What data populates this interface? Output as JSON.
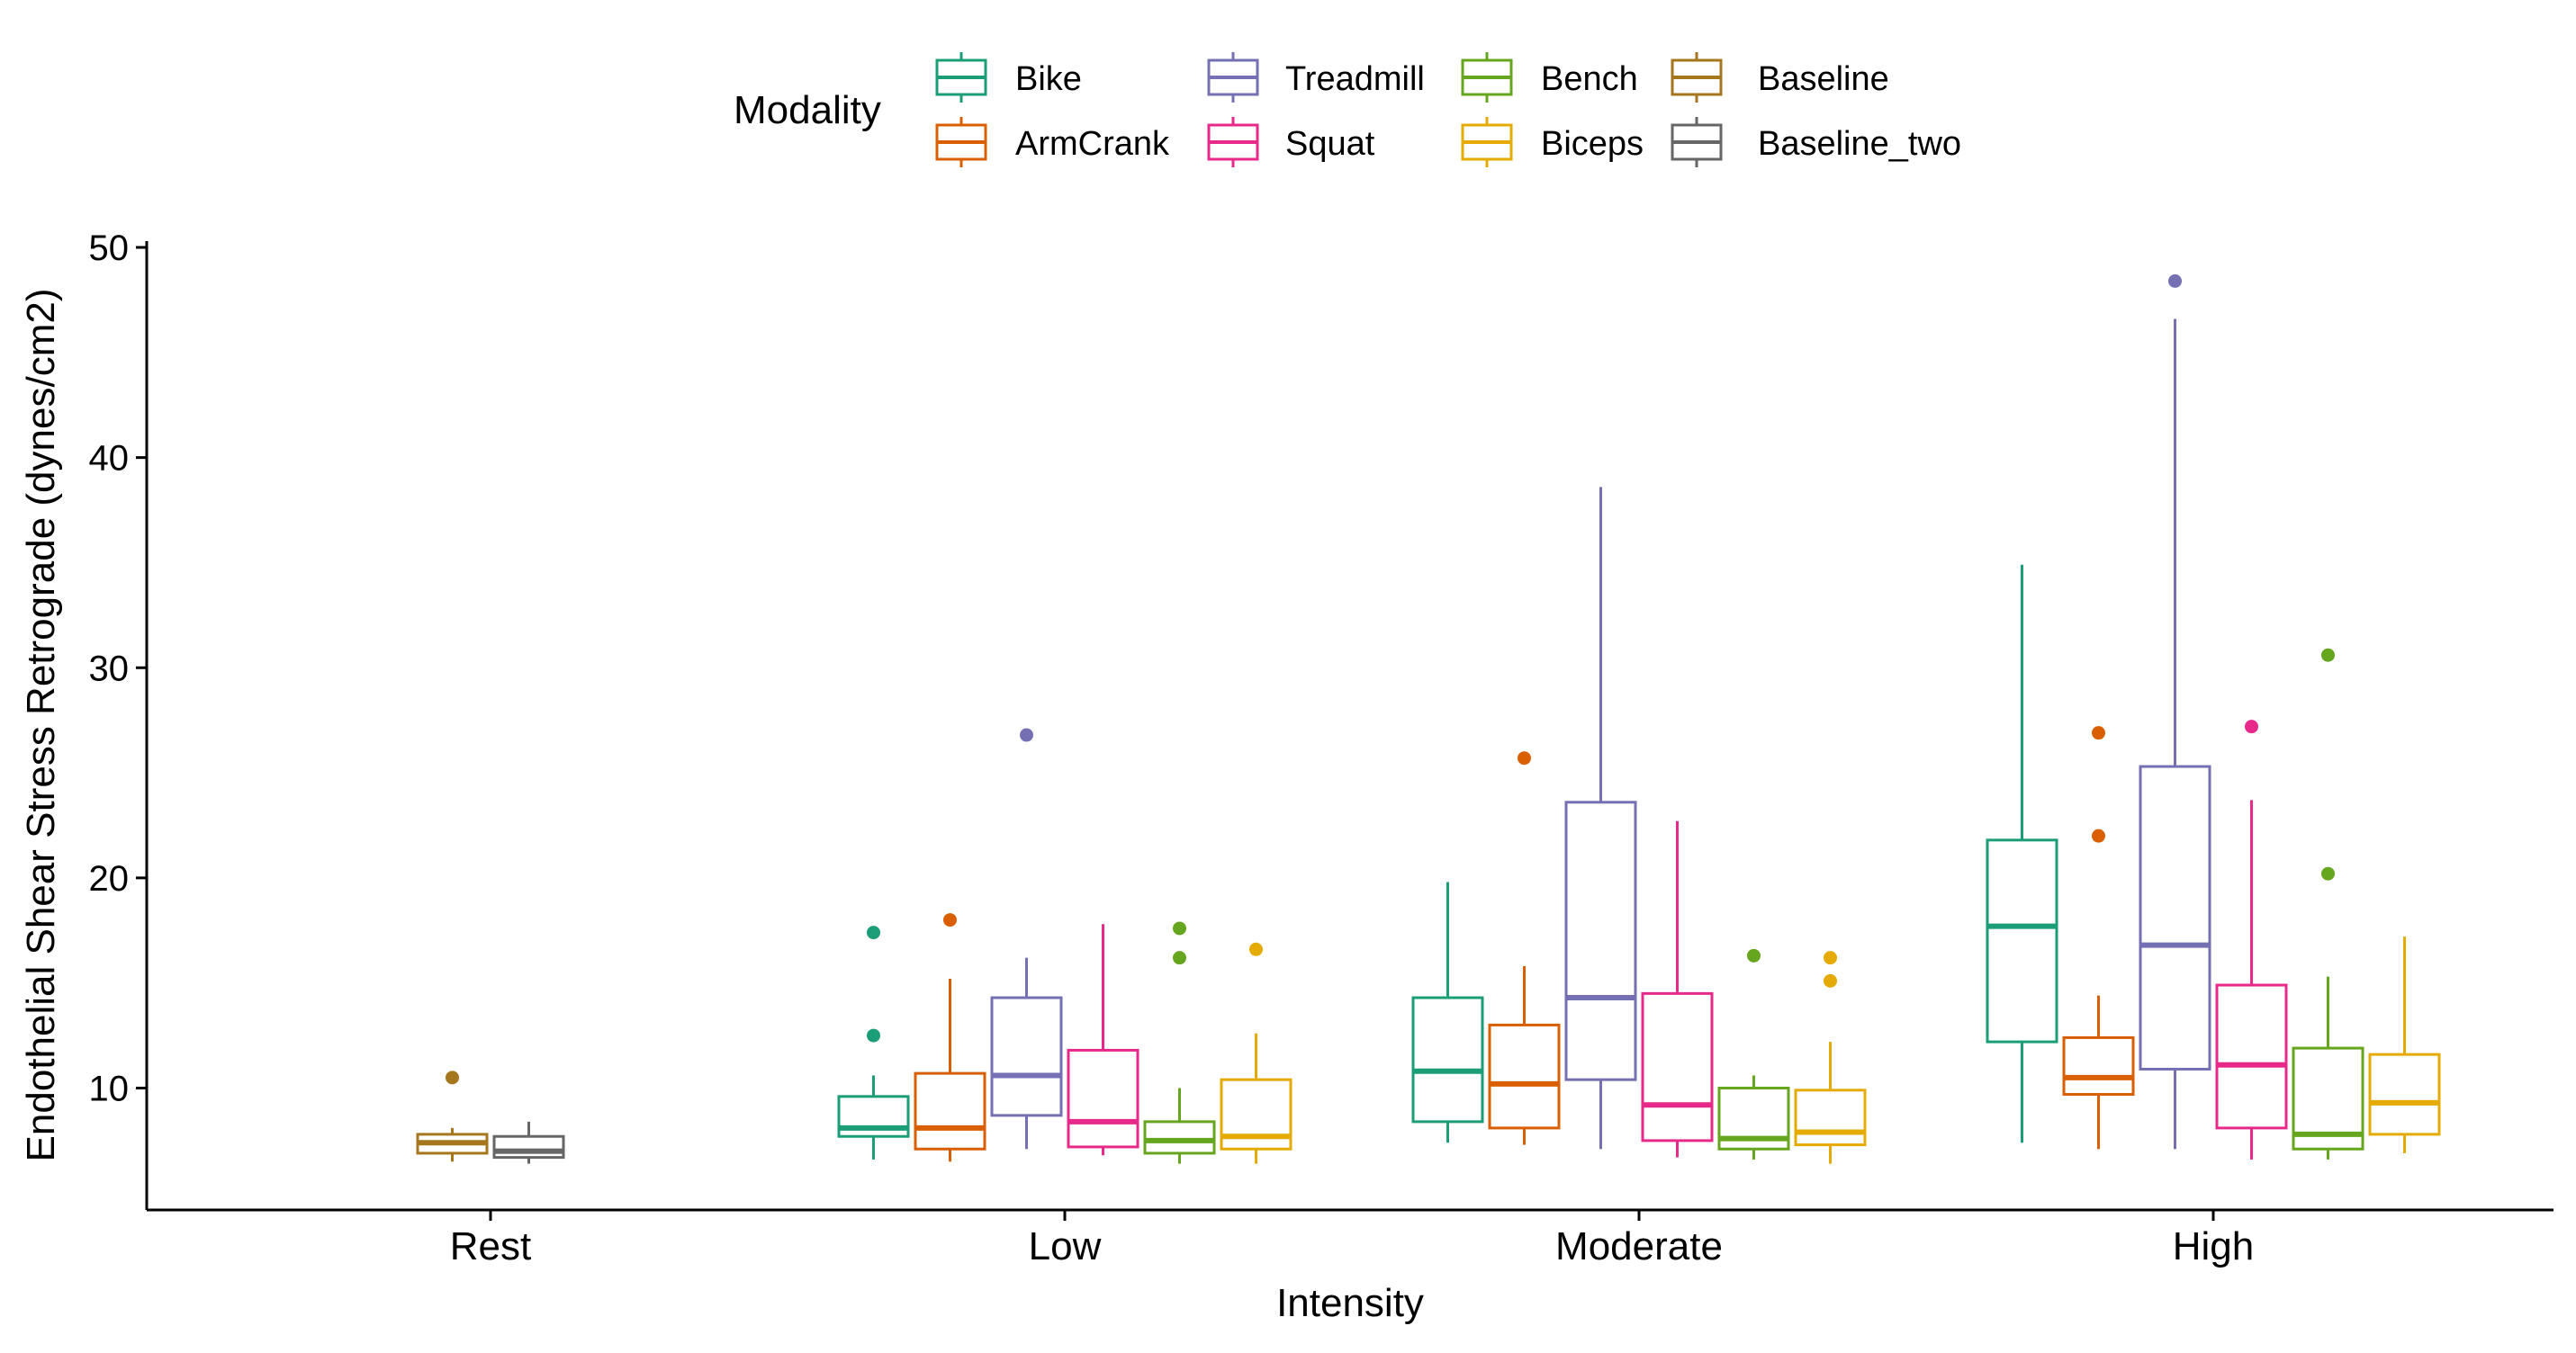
{
  "chart_data": {
    "type": "boxplot",
    "legend": {
      "title": "Modality",
      "position": "top",
      "items": [
        {
          "name": "Bike",
          "color": "#1b9e77"
        },
        {
          "name": "ArmCrank",
          "color": "#d95f02"
        },
        {
          "name": "Treadmill",
          "color": "#7570b3"
        },
        {
          "name": "Squat",
          "color": "#e7298a"
        },
        {
          "name": "Bench",
          "color": "#66a61e"
        },
        {
          "name": "Biceps",
          "color": "#e6ab02"
        },
        {
          "name": "Baseline",
          "color": "#a6761d"
        },
        {
          "name": "Baseline_two",
          "color": "#666666"
        }
      ]
    },
    "xlabel": "Intensity",
    "ylabel": "Endothelial Shear Stress Retrograde (dynes/cm2)",
    "categories": [
      "Rest",
      "Low",
      "Moderate",
      "High"
    ],
    "ylim": [
      4.2,
      50.3
    ],
    "yticks": [
      10,
      20,
      30,
      40,
      50
    ],
    "grid": false,
    "groups": [
      {
        "category": "Rest",
        "boxes": [
          {
            "series": "Baseline",
            "whisker_low": 6.5,
            "q1": 6.9,
            "median": 7.4,
            "q3": 7.8,
            "whisker_high": 8.1,
            "outliers": [
              10.5
            ]
          },
          {
            "series": "Baseline_two",
            "whisker_low": 6.4,
            "q1": 6.7,
            "median": 7.0,
            "q3": 7.7,
            "whisker_high": 8.4,
            "outliers": []
          }
        ]
      },
      {
        "category": "Low",
        "boxes": [
          {
            "series": "Bike",
            "whisker_low": 6.6,
            "q1": 7.7,
            "median": 8.1,
            "q3": 9.6,
            "whisker_high": 10.6,
            "outliers": [
              12.5,
              17.4
            ]
          },
          {
            "series": "ArmCrank",
            "whisker_low": 6.5,
            "q1": 7.1,
            "median": 8.1,
            "q3": 10.7,
            "whisker_high": 15.2,
            "outliers": [
              18.0
            ]
          },
          {
            "series": "Treadmill",
            "whisker_low": 7.1,
            "q1": 8.7,
            "median": 10.6,
            "q3": 14.3,
            "whisker_high": 16.2,
            "outliers": [
              26.8
            ]
          },
          {
            "series": "Squat",
            "whisker_low": 6.8,
            "q1": 7.2,
            "median": 8.4,
            "q3": 11.8,
            "whisker_high": 17.8,
            "outliers": []
          },
          {
            "series": "Bench",
            "whisker_low": 6.4,
            "q1": 6.9,
            "median": 7.5,
            "q3": 8.4,
            "whisker_high": 10.0,
            "outliers": [
              16.2,
              17.6
            ]
          },
          {
            "series": "Biceps",
            "whisker_low": 6.4,
            "q1": 7.1,
            "median": 7.7,
            "q3": 10.4,
            "whisker_high": 12.6,
            "outliers": [
              16.6
            ]
          }
        ]
      },
      {
        "category": "Moderate",
        "boxes": [
          {
            "series": "Bike",
            "whisker_low": 7.4,
            "q1": 8.4,
            "median": 10.8,
            "q3": 14.3,
            "whisker_high": 19.8,
            "outliers": []
          },
          {
            "series": "ArmCrank",
            "whisker_low": 7.3,
            "q1": 8.1,
            "median": 10.2,
            "q3": 13.0,
            "whisker_high": 15.8,
            "outliers": [
              25.7
            ]
          },
          {
            "series": "Treadmill",
            "whisker_low": 7.1,
            "q1": 10.4,
            "median": 14.3,
            "q3": 23.6,
            "whisker_high": 38.6,
            "outliers": []
          },
          {
            "series": "Squat",
            "whisker_low": 6.7,
            "q1": 7.5,
            "median": 9.2,
            "q3": 14.5,
            "whisker_high": 22.7,
            "outliers": []
          },
          {
            "series": "Bench",
            "whisker_low": 6.6,
            "q1": 7.1,
            "median": 7.6,
            "q3": 10.0,
            "whisker_high": 10.6,
            "outliers": [
              16.3
            ]
          },
          {
            "series": "Biceps",
            "whisker_low": 6.4,
            "q1": 7.3,
            "median": 7.9,
            "q3": 9.9,
            "whisker_high": 12.2,
            "outliers": [
              15.1,
              16.2
            ]
          }
        ]
      },
      {
        "category": "High",
        "boxes": [
          {
            "series": "Bike",
            "whisker_low": 7.4,
            "q1": 12.2,
            "median": 17.7,
            "q3": 21.8,
            "whisker_high": 34.9,
            "outliers": []
          },
          {
            "series": "ArmCrank",
            "whisker_low": 7.1,
            "q1": 9.7,
            "median": 10.5,
            "q3": 12.4,
            "whisker_high": 14.4,
            "outliers": [
              22.0,
              26.9
            ]
          },
          {
            "series": "Treadmill",
            "whisker_low": 7.1,
            "q1": 10.9,
            "median": 16.8,
            "q3": 25.3,
            "whisker_high": 46.6,
            "outliers": [
              48.4
            ]
          },
          {
            "series": "Squat",
            "whisker_low": 6.6,
            "q1": 8.1,
            "median": 11.1,
            "q3": 14.9,
            "whisker_high": 23.7,
            "outliers": [
              27.2
            ]
          },
          {
            "series": "Bench",
            "whisker_low": 6.6,
            "q1": 7.1,
            "median": 7.8,
            "q3": 11.9,
            "whisker_high": 15.3,
            "outliers": [
              20.2,
              30.6
            ]
          },
          {
            "series": "Biceps",
            "whisker_low": 6.9,
            "q1": 7.8,
            "median": 9.3,
            "q3": 11.6,
            "whisker_high": 17.2,
            "outliers": []
          }
        ]
      }
    ]
  }
}
